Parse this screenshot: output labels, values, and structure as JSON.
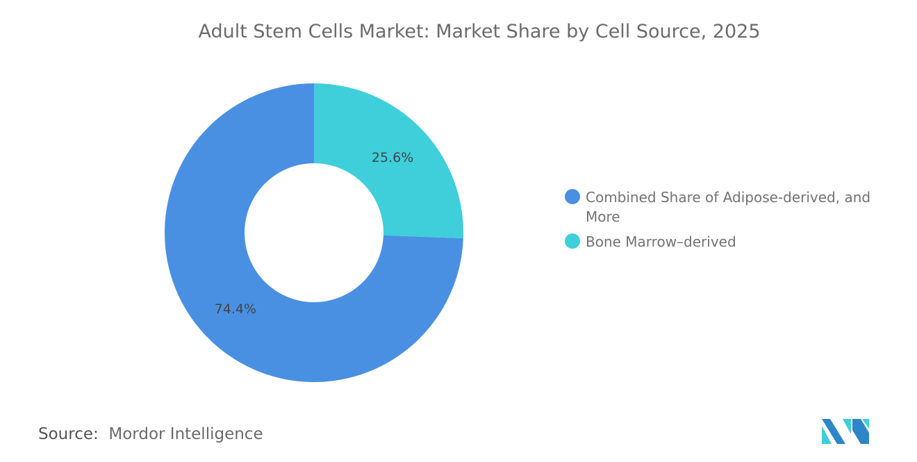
{
  "chart_data": {
    "type": "pie",
    "donut": true,
    "title": "Adult Stem Cells Market: Market Share by Cell Source, 2025",
    "categories": [
      "Bone Marrow–derived",
      "Combined Share of Adipose-derived, and More"
    ],
    "values": [
      25.6,
      74.4
    ],
    "data_labels": [
      "25.6%",
      "74.4%"
    ],
    "colors": [
      "#3ecfdb",
      "#4a90e2"
    ],
    "legend": {
      "placement": "right",
      "entries": [
        {
          "label": "Combined Share of Adipose-derived, and More",
          "color": "#4a90e2"
        },
        {
          "label": "Bone Marrow–derived",
          "color": "#3ecfdb"
        }
      ]
    }
  },
  "source": {
    "label": "Source:",
    "value": "Mordor Intelligence"
  },
  "logo": {
    "name": "mordor-intelligence-logo",
    "colors": [
      "#2e86c8",
      "#3ecfdb"
    ]
  }
}
